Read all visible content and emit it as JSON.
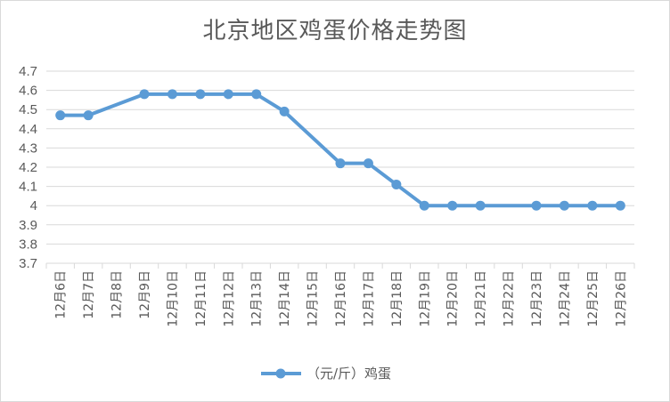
{
  "chart_data": {
    "type": "line",
    "title": "北京地区鸡蛋价格走势图",
    "xlabel": "",
    "ylabel": "",
    "categories": [
      "12月6日",
      "12月7日",
      "12月8日",
      "12月9日",
      "12月10日",
      "12月11日",
      "12月12日",
      "12月13日",
      "12月14日",
      "12月15日",
      "12月16日",
      "12月17日",
      "12月18日",
      "12月19日",
      "12月20日",
      "12月21日",
      "12月22日",
      "12月23日",
      "12月24日",
      "12月25日",
      "12月26日"
    ],
    "series": [
      {
        "name": "（元/斤）鸡蛋",
        "color": "#5b9bd5",
        "values": [
          4.47,
          4.47,
          null,
          4.58,
          4.58,
          4.58,
          4.58,
          4.58,
          4.49,
          null,
          4.22,
          4.22,
          4.11,
          4.0,
          4.0,
          4.0,
          null,
          4.0,
          4.0,
          4.0,
          4.0
        ]
      }
    ],
    "ylim": [
      3.7,
      4.7
    ],
    "yticks": [
      "3.7",
      "3.8",
      "3.9",
      "4",
      "4.1",
      "4.2",
      "4.3",
      "4.4",
      "4.5",
      "4.6",
      "4.7"
    ],
    "grid": true,
    "legend": "bottom"
  }
}
